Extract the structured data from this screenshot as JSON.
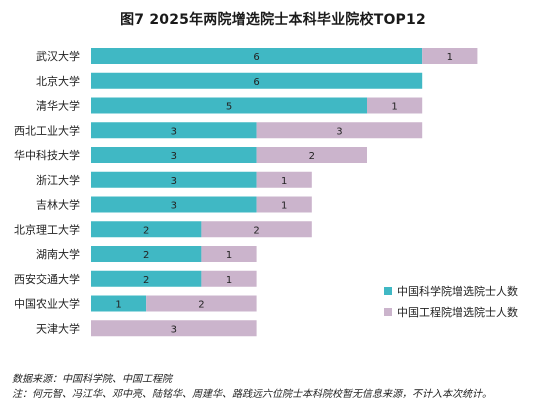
{
  "chart_data": {
    "type": "bar",
    "orientation": "horizontal",
    "stacked": true,
    "title": "图7 2025年两院增选院士本科毕业院校TOP12",
    "categories": [
      "武汉大学",
      "北京大学",
      "清华大学",
      "西北工业大学",
      "华中科技大学",
      "浙江大学",
      "吉林大学",
      "北京理工大学",
      "湖南大学",
      "西安交通大学",
      "中国农业大学",
      "天津大学"
    ],
    "series": [
      {
        "name": "中国科学院增选院士人数",
        "color": "#40b8c4",
        "values": [
          6,
          6,
          5,
          3,
          3,
          3,
          3,
          2,
          2,
          2,
          1,
          0
        ]
      },
      {
        "name": "中国工程院增选院士人数",
        "color": "#cbb4cc",
        "values": [
          1,
          0,
          1,
          3,
          2,
          1,
          1,
          2,
          1,
          1,
          2,
          3
        ]
      }
    ],
    "xlim": [
      0,
      7.5
    ],
    "grid": false,
    "legend_position": "bottom-right"
  },
  "footnote": {
    "source": "数据来源：中国科学院、中国工程院",
    "note": "注：何元智、冯江华、邓中亮、陆铭华、周建华、路践远六位院士本科院校暂无信息来源，不计入本次统计。"
  }
}
